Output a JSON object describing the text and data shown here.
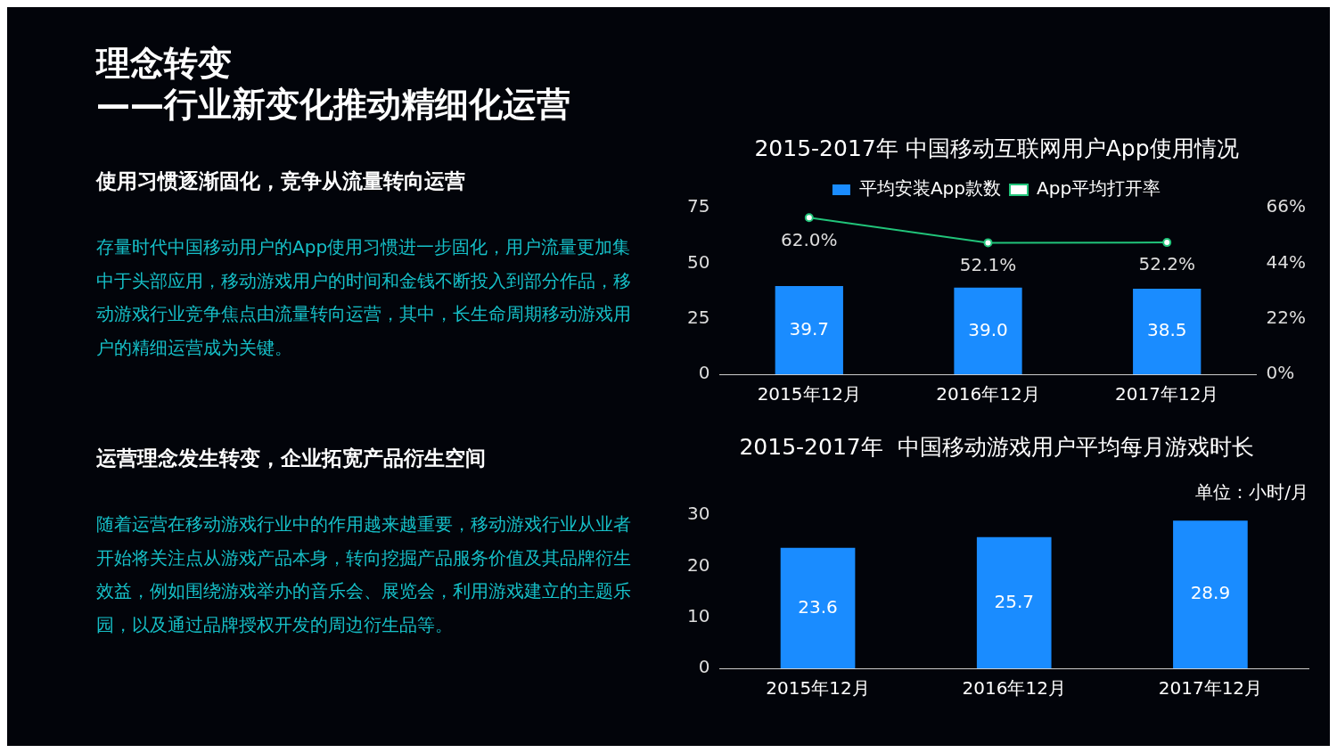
{
  "chart_data": [
    {
      "type": "other",
      "title": "理念转变",
      "subtitle": "——行业新变化推动精细化运营",
      "annotations": [
        "使用习惯逐渐固化，竞争从流量转向运营",
        "存量时代中国移动用户的App使用习惯进一步固化，用户流量更加集中于头部应用，移动游戏用户的时间和金钱不断投入到部分作品，移动游戏行业竞争焦点由流量转向运营，其中，长生命周期移动游戏用户的精细运营成为关键。",
        "运营理念发生转变，企业拓宽产品衍生空间",
        "随着运营在移动游戏行业中的作用越来越重要，移动游戏行业从业者开始将关注点从游戏产品本身，转向挖掘产品服务价值及其品牌衍生效益，例如围绕游戏举办的音乐会、展览会，利用游戏建立的主题乐园，以及通过品牌授权开发的周边衍生品等。"
      ]
    },
    {
      "type": "bar",
      "title": "2015-2017年 中国移动互联网用户App使用情况",
      "categories": [
        "2015年12月",
        "2016年12月",
        "2017年12月"
      ],
      "ylim": [
        0,
        75
      ],
      "yticks": [
        0,
        25,
        50,
        75
      ],
      "y2lim": [
        0,
        66
      ],
      "y2ticks": [
        {
          "value": 0,
          "label": "0%"
        },
        {
          "value": 22,
          "label": "22%"
        },
        {
          "value": 44,
          "label": "44%"
        },
        {
          "value": 66,
          "label": "66%"
        }
      ],
      "legend": "top",
      "marker": "circle",
      "series": [
        {
          "name": "平均安装App款数",
          "color": "#1a8cff",
          "values": [
            39.7,
            39.0,
            38.5
          ],
          "value_labels": [
            "39.7",
            "39.0",
            "38.5"
          ]
        },
        {
          "name": "App平均打开率",
          "type": "line",
          "axis": "y2",
          "color": "#21c47a",
          "values": [
            62.0,
            52.1,
            52.2
          ],
          "value_labels": [
            "62.0%",
            "52.1%",
            "52.2%"
          ]
        }
      ]
    },
    {
      "type": "bar",
      "title": "2015-2017年  中国移动游戏用户平均每月游戏时长",
      "categories": [
        "2015年12月",
        "2016年12月",
        "2017年12月"
      ],
      "values": [
        23.6,
        25.7,
        28.9
      ],
      "color": "#1a8cff",
      "ylim": [
        0,
        30
      ],
      "yticks": [
        0,
        10,
        20,
        30
      ],
      "data_labels": true,
      "annotations": [
        "单位：小时/月"
      ]
    }
  ]
}
